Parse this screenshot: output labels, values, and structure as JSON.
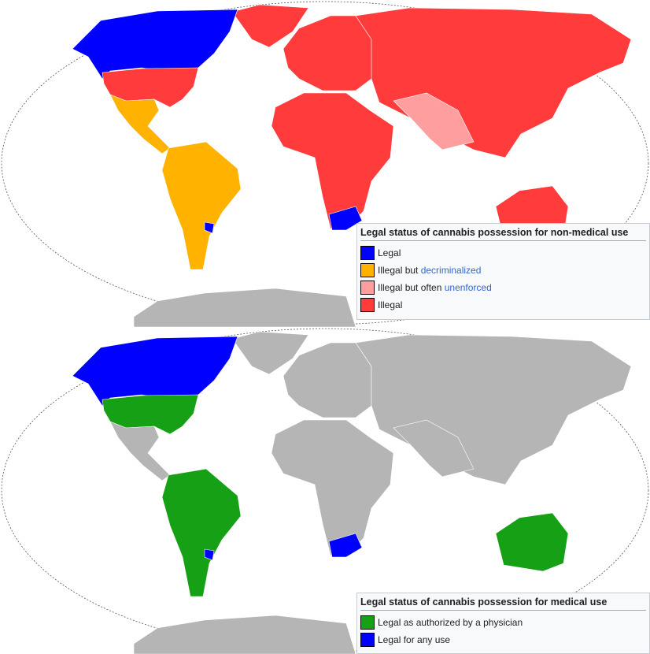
{
  "colors": {
    "legal": "#0000ff",
    "decriminalized": "#ffb300",
    "unenforced": "#ff9e9e",
    "illegal": "#ff3b3b",
    "medical": "#16a016",
    "no_data": "#b5b5b5",
    "ocean": "#ffffff"
  },
  "non_medical_legend": {
    "title": "Legal status of cannabis possession for non-medical use",
    "items": [
      {
        "prefix": "Legal",
        "link": "",
        "color": "#0000ff"
      },
      {
        "prefix": "Illegal but ",
        "link": "decriminalized",
        "color": "#ffb300"
      },
      {
        "prefix": "Illegal but often ",
        "link": "unenforced",
        "color": "#ff9e9e"
      },
      {
        "prefix": "Illegal",
        "link": "",
        "color": "#ff3b3b"
      }
    ]
  },
  "medical_legend": {
    "title": "Legal status of cannabis possession for medical use",
    "items": [
      {
        "label": "Legal as authorized by a physician",
        "color": "#16a016"
      },
      {
        "label": "Legal for any use",
        "color": "#0000ff"
      }
    ]
  },
  "regions_non_medical": {
    "canada": "legal",
    "united_states": "illegal",
    "mexico_central_america": "decriminalized",
    "south_america": "decriminalized",
    "uruguay": "legal",
    "greenland": "illegal",
    "europe": "illegal",
    "africa": "illegal",
    "south_africa": "legal",
    "asia": "illegal",
    "south_asia": "unenforced",
    "australia": "illegal",
    "antarctica": "no_data"
  },
  "regions_medical": {
    "canada": "legal",
    "united_states": "medical",
    "mexico_central_america": "no_data",
    "south_america": "medical",
    "uruguay": "legal",
    "greenland": "no_data",
    "europe": "no_data",
    "africa": "no_data",
    "south_africa": "legal",
    "asia": "no_data",
    "south_asia": "no_data",
    "australia": "medical",
    "antarctica": "no_data"
  }
}
